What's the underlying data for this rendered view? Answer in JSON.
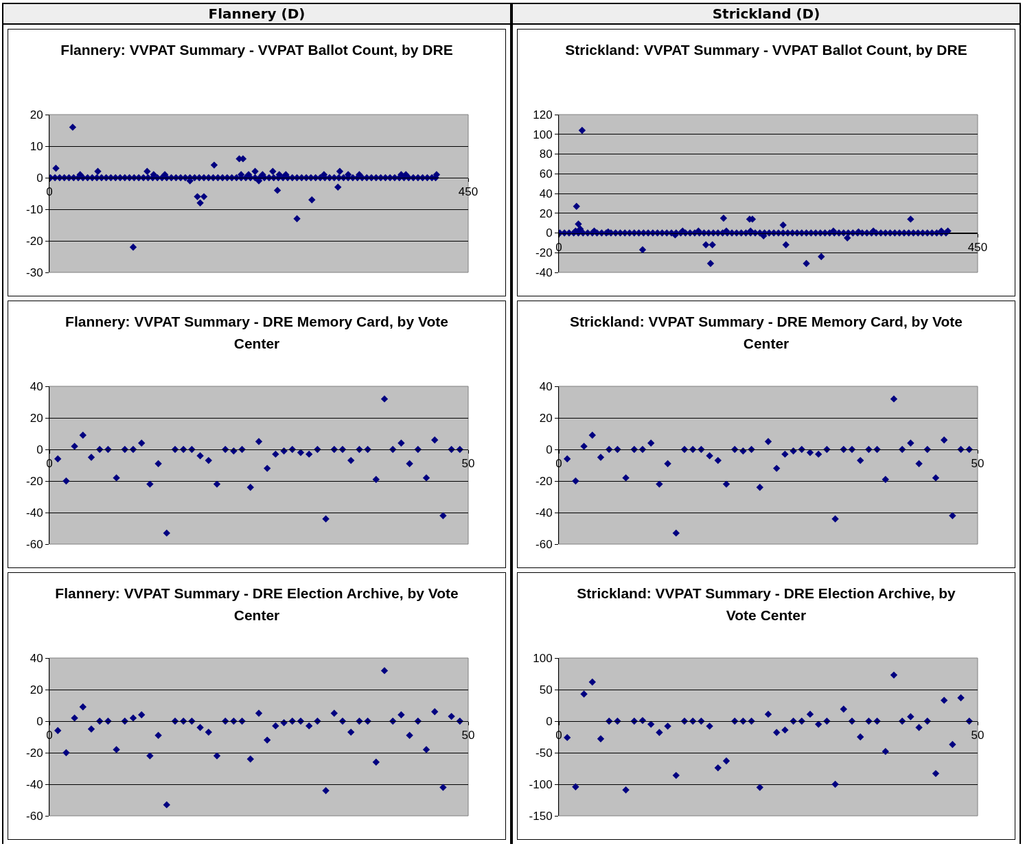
{
  "chart_data": [
    {
      "type": "scatter",
      "title": "Flannery: VVPAT Summary - VVPAT Ballot Count, by DRE",
      "annotations": [
        "Flannery (D)"
      ],
      "xlim": [
        0,
        450
      ],
      "xticks": [
        0,
        450
      ],
      "ylim": [
        -30,
        20
      ],
      "yticks": [
        -30,
        -20,
        -10,
        0,
        10,
        20
      ],
      "grid": "y",
      "marker": "diamond",
      "series": [
        {
          "color": "#000080",
          "x": [
            1,
            6,
            11,
            16,
            21,
            26,
            31,
            36,
            41,
            46,
            51,
            56,
            61,
            66,
            71,
            76,
            81,
            86,
            91,
            96,
            101,
            106,
            111,
            116,
            121,
            126,
            131,
            136,
            141,
            146,
            151,
            156,
            161,
            166,
            171,
            176,
            181,
            186,
            191,
            196,
            201,
            206,
            211,
            216,
            221,
            226,
            231,
            236,
            241,
            246,
            251,
            256,
            261,
            266,
            271,
            276,
            281,
            286,
            291,
            296,
            301,
            306,
            311,
            316,
            321,
            326,
            331,
            336,
            341,
            346,
            351,
            356,
            361,
            366,
            371,
            376,
            381,
            386,
            391,
            396,
            401,
            406,
            411,
            415
          ],
          "values": [
            0,
            0,
            0,
            0,
            0,
            0,
            0,
            0,
            0,
            0,
            0,
            0,
            0,
            0,
            0,
            0,
            0,
            0,
            0,
            0,
            0,
            0,
            0,
            0,
            0,
            0,
            0,
            0,
            0,
            0,
            0,
            0,
            0,
            0,
            0,
            0,
            0,
            0,
            0,
            0,
            0,
            0,
            0,
            0,
            0,
            0,
            0,
            0,
            0,
            0,
            0,
            0,
            0,
            0,
            0,
            0,
            0,
            0,
            0,
            0,
            0,
            0,
            0,
            0,
            0,
            0,
            0,
            0,
            0,
            0,
            0,
            0,
            0,
            0,
            0,
            0,
            0,
            0,
            0,
            0,
            0,
            0,
            0,
            0
          ]
        },
        {
          "color": "#000080",
          "x": [
            7,
            25,
            33,
            52,
            90,
            105,
            112,
            124,
            151,
            159,
            166,
            162,
            177,
            204,
            208,
            206,
            214,
            221,
            225,
            229,
            240,
            245,
            247,
            254,
            266,
            282,
            295,
            310,
            312,
            321,
            333,
            378,
            383,
            416
          ],
          "values": [
            3,
            16,
            1,
            2,
            -22,
            2,
            1,
            1,
            -1,
            -6,
            -6,
            -8,
            4,
            6,
            6,
            1,
            1,
            2,
            -1,
            1,
            2,
            -4,
            1,
            1,
            -13,
            -7,
            1,
            -3,
            2,
            1,
            1,
            1,
            1,
            1
          ]
        }
      ]
    },
    {
      "type": "scatter",
      "title": "Strickland: VVPAT Summary - VVPAT Ballot Count, by DRE",
      "annotations": [
        "Strickland (D)"
      ],
      "xlim": [
        0,
        450
      ],
      "xticks": [
        0,
        450
      ],
      "ylim": [
        -40,
        120
      ],
      "yticks": [
        -40,
        -20,
        0,
        20,
        40,
        60,
        80,
        100,
        120
      ],
      "grid": "y",
      "marker": "diamond",
      "series": [
        {
          "color": "#000080",
          "x": [
            1,
            6,
            11,
            16,
            21,
            26,
            31,
            36,
            41,
            46,
            51,
            56,
            61,
            66,
            71,
            76,
            81,
            86,
            91,
            96,
            101,
            106,
            111,
            116,
            121,
            126,
            131,
            136,
            141,
            146,
            151,
            156,
            161,
            166,
            171,
            176,
            181,
            186,
            191,
            196,
            201,
            206,
            211,
            216,
            221,
            226,
            231,
            236,
            241,
            246,
            251,
            256,
            261,
            266,
            271,
            276,
            281,
            286,
            291,
            296,
            301,
            306,
            311,
            316,
            321,
            326,
            331,
            336,
            341,
            346,
            351,
            356,
            361,
            366,
            371,
            376,
            381,
            386,
            391,
            396,
            401,
            406,
            411,
            416
          ],
          "values": [
            0,
            0,
            0,
            0,
            0,
            0,
            0,
            0,
            0,
            0,
            0,
            0,
            0,
            0,
            0,
            0,
            0,
            0,
            0,
            0,
            0,
            0,
            0,
            0,
            0,
            0,
            0,
            0,
            0,
            0,
            0,
            0,
            0,
            0,
            0,
            0,
            0,
            0,
            0,
            0,
            0,
            0,
            0,
            0,
            0,
            0,
            0,
            0,
            0,
            0,
            0,
            0,
            0,
            0,
            0,
            0,
            0,
            0,
            0,
            0,
            0,
            0,
            0,
            0,
            0,
            0,
            0,
            0,
            0,
            0,
            0,
            0,
            0,
            0,
            0,
            0,
            0,
            0,
            0,
            0,
            0,
            0,
            0,
            0
          ]
        },
        {
          "color": "#000080",
          "x": [
            19,
            21,
            25,
            23,
            18,
            38,
            53,
            90,
            125,
            133,
            150,
            158,
            165,
            163,
            177,
            180,
            205,
            208,
            206,
            220,
            241,
            244,
            266,
            282,
            295,
            310,
            322,
            338,
            378,
            411,
            418
          ],
          "values": [
            27,
            9,
            104,
            4,
            2,
            2,
            1,
            -17,
            -2,
            2,
            2,
            -12,
            -12,
            -31,
            15,
            2,
            14,
            14,
            2,
            -3,
            8,
            -12,
            -31,
            -24,
            2,
            -5,
            1,
            2,
            14,
            2,
            2
          ]
        }
      ]
    },
    {
      "type": "scatter",
      "title": "Flannery: VVPAT Summary - DRE Memory Card, by Vote Center",
      "xlim": [
        0,
        50
      ],
      "xticks": [
        0,
        50
      ],
      "ylim": [
        -60,
        40
      ],
      "yticks": [
        -60,
        -40,
        -20,
        0,
        20,
        40
      ],
      "grid": "y",
      "marker": "diamond",
      "series": [
        {
          "color": "#000080",
          "x": [
            1,
            2,
            3,
            4,
            5,
            6,
            7,
            8,
            9,
            10,
            11,
            12,
            13,
            14,
            15,
            16,
            17,
            18,
            19,
            20,
            21,
            22,
            23,
            24,
            25,
            26,
            27,
            28,
            29,
            30,
            31,
            32,
            33,
            34,
            35,
            36,
            37,
            38,
            39,
            40,
            41,
            42,
            43,
            44,
            45,
            46,
            47,
            48,
            49
          ],
          "values": [
            -6,
            -20,
            2,
            9,
            -5,
            0,
            0,
            -18,
            0,
            0,
            4,
            -22,
            -9,
            -53,
            0,
            0,
            0,
            -4,
            -7,
            -22,
            0,
            -1,
            0,
            -24,
            5,
            -12,
            -3,
            -1,
            0,
            -2,
            -3,
            0,
            -44,
            0,
            0,
            -7,
            0,
            0,
            -19,
            32,
            0,
            4,
            -9,
            0,
            -18,
            6,
            -42,
            0,
            0
          ]
        }
      ]
    },
    {
      "type": "scatter",
      "title": "Strickland: VVPAT Summary - DRE Memory Card, by Vote Center",
      "xlim": [
        0,
        50
      ],
      "xticks": [
        0,
        50
      ],
      "ylim": [
        -60,
        40
      ],
      "yticks": [
        -60,
        -40,
        -20,
        0,
        20,
        40
      ],
      "grid": "y",
      "marker": "diamond",
      "series": [
        {
          "color": "#000080",
          "x": [
            1,
            2,
            3,
            4,
            5,
            6,
            7,
            8,
            9,
            10,
            11,
            12,
            13,
            14,
            15,
            16,
            17,
            18,
            19,
            20,
            21,
            22,
            23,
            24,
            25,
            26,
            27,
            28,
            29,
            30,
            31,
            32,
            33,
            34,
            35,
            36,
            37,
            38,
            39,
            40,
            41,
            42,
            43,
            44,
            45,
            46,
            47,
            48,
            49
          ],
          "values": [
            -6,
            -20,
            2,
            9,
            -5,
            0,
            0,
            -18,
            0,
            0,
            4,
            -22,
            -9,
            -53,
            0,
            0,
            0,
            -4,
            -7,
            -22,
            0,
            -1,
            0,
            -24,
            5,
            -12,
            -3,
            -1,
            0,
            -2,
            -3,
            0,
            -44,
            0,
            0,
            -7,
            0,
            0,
            -19,
            32,
            0,
            4,
            -9,
            0,
            -18,
            6,
            -42,
            0,
            0
          ]
        }
      ]
    },
    {
      "type": "scatter",
      "title": "Flannery: VVPAT Summary - DRE Election Archive, by Vote Center",
      "xlim": [
        0,
        50
      ],
      "xticks": [
        0,
        50
      ],
      "ylim": [
        -60,
        40
      ],
      "yticks": [
        -60,
        -40,
        -20,
        0,
        20,
        40
      ],
      "grid": "y",
      "marker": "diamond",
      "series": [
        {
          "color": "#000080",
          "x": [
            1,
            2,
            3,
            4,
            5,
            6,
            7,
            8,
            9,
            10,
            11,
            12,
            13,
            14,
            15,
            16,
            17,
            18,
            19,
            20,
            21,
            22,
            23,
            24,
            25,
            26,
            27,
            28,
            29,
            30,
            31,
            32,
            33,
            34,
            35,
            36,
            37,
            38,
            39,
            40,
            41,
            42,
            43,
            44,
            45,
            46,
            47,
            48,
            49
          ],
          "values": [
            -6,
            -20,
            2,
            9,
            -5,
            0,
            0,
            -18,
            0,
            2,
            4,
            -22,
            -9,
            -53,
            0,
            0,
            0,
            -4,
            -7,
            -22,
            0,
            0,
            0,
            -24,
            5,
            -12,
            -3,
            -1,
            0,
            0,
            -3,
            0,
            -44,
            5,
            0,
            -7,
            0,
            0,
            -26,
            32,
            0,
            4,
            -9,
            0,
            -18,
            6,
            -42,
            3,
            0
          ]
        }
      ]
    },
    {
      "type": "scatter",
      "title": "Strickland: VVPAT Summary - DRE Election Archive, by Vote Center",
      "xlim": [
        0,
        50
      ],
      "xticks": [
        0,
        50
      ],
      "ylim": [
        -150,
        100
      ],
      "yticks": [
        -150,
        -100,
        -50,
        0,
        50,
        100
      ],
      "grid": "y",
      "marker": "diamond",
      "series": [
        {
          "color": "#000080",
          "x": [
            1,
            2,
            3,
            4,
            5,
            6,
            7,
            8,
            9,
            10,
            11,
            12,
            13,
            14,
            15,
            16,
            17,
            18,
            19,
            20,
            21,
            22,
            23,
            24,
            25,
            26,
            27,
            28,
            29,
            30,
            31,
            32,
            33,
            34,
            35,
            36,
            37,
            38,
            39,
            40,
            41,
            42,
            43,
            44,
            45,
            46,
            47,
            48,
            49
          ],
          "values": [
            -26,
            -104,
            43,
            62,
            -28,
            0,
            0,
            -109,
            0,
            1,
            -5,
            -18,
            -8,
            -86,
            0,
            0,
            0,
            -8,
            -74,
            -63,
            0,
            0,
            0,
            -105,
            11,
            -18,
            -14,
            0,
            0,
            11,
            -5,
            0,
            -100,
            19,
            0,
            -25,
            0,
            0,
            -48,
            73,
            0,
            7,
            -10,
            0,
            -83,
            33,
            -37,
            37,
            0
          ]
        }
      ]
    }
  ]
}
